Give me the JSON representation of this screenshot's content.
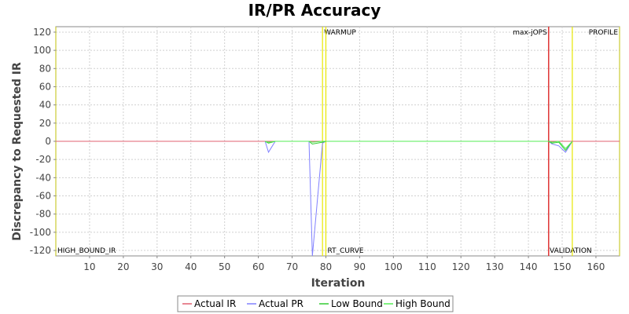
{
  "chart_data": {
    "type": "line",
    "title": "IR/PR Accuracy",
    "xlabel": "Iteration",
    "ylabel": "Discrepancy to Requested IR",
    "xlim": [
      0,
      167
    ],
    "ylim": [
      -126,
      126
    ],
    "x_ticks": [
      10,
      20,
      30,
      40,
      50,
      60,
      70,
      80,
      90,
      100,
      110,
      120,
      130,
      140,
      150,
      160
    ],
    "y_ticks": [
      120,
      100,
      80,
      60,
      40,
      20,
      0,
      -20,
      -40,
      -60,
      -80,
      -100,
      -120
    ],
    "grid": true,
    "legend_position": "bottom",
    "series": [
      {
        "name": "Actual IR",
        "color": "#e06070",
        "points": [
          [
            0,
            0
          ],
          [
            167,
            0
          ]
        ]
      },
      {
        "name": "Actual PR",
        "color": "#8080ff",
        "points": [
          [
            62,
            0
          ],
          [
            63,
            -12
          ],
          [
            65,
            0
          ],
          [
            75,
            0
          ],
          [
            76,
            -128
          ],
          [
            79,
            -2
          ],
          [
            80,
            0
          ],
          [
            146,
            0
          ],
          [
            147,
            -3
          ],
          [
            149,
            -5
          ],
          [
            151,
            -12
          ],
          [
            153,
            0
          ]
        ]
      },
      {
        "name": "Low Bound",
        "color": "#33cc33",
        "points": [
          [
            62,
            0
          ],
          [
            63,
            -2
          ],
          [
            65,
            0
          ],
          [
            75,
            0
          ],
          [
            76,
            -3
          ],
          [
            79,
            -1
          ],
          [
            80,
            0
          ],
          [
            146,
            0
          ],
          [
            147,
            -2
          ],
          [
            149,
            -1
          ],
          [
            151,
            -10
          ],
          [
            153,
            0
          ]
        ]
      },
      {
        "name": "High Bound",
        "color": "#55ee55",
        "points": [
          [
            62,
            0
          ],
          [
            63,
            -1
          ],
          [
            65,
            0
          ],
          [
            75,
            0
          ],
          [
            76,
            -1
          ],
          [
            79,
            0
          ],
          [
            80,
            0
          ],
          [
            146,
            0
          ],
          [
            147,
            -1
          ],
          [
            149,
            0
          ],
          [
            151,
            -8
          ],
          [
            153,
            0
          ]
        ]
      }
    ],
    "markers": [
      {
        "x": 0,
        "color": "#cccc33",
        "label": "HIGH_BOUND_IR",
        "label_pos": "bottom"
      },
      {
        "x": 79,
        "color": "#e8e800",
        "label": "WARMUP",
        "label_pos": "top"
      },
      {
        "x": 80,
        "color": "#e8e800",
        "label": "RT_CURVE",
        "label_pos": "bottom"
      },
      {
        "x": 146,
        "color": "#dd2222",
        "label": "max-jOPS",
        "label_pos": "top-left"
      },
      {
        "x": 146,
        "color": "#dd2222",
        "label": "VALIDATION",
        "label_pos": "bottom"
      },
      {
        "x": 153,
        "color": "#e8e800",
        "label": "PROFILE",
        "label_pos": "top"
      },
      {
        "x": 167,
        "color": "#cccc33",
        "label": "",
        "label_pos": "none"
      }
    ]
  }
}
